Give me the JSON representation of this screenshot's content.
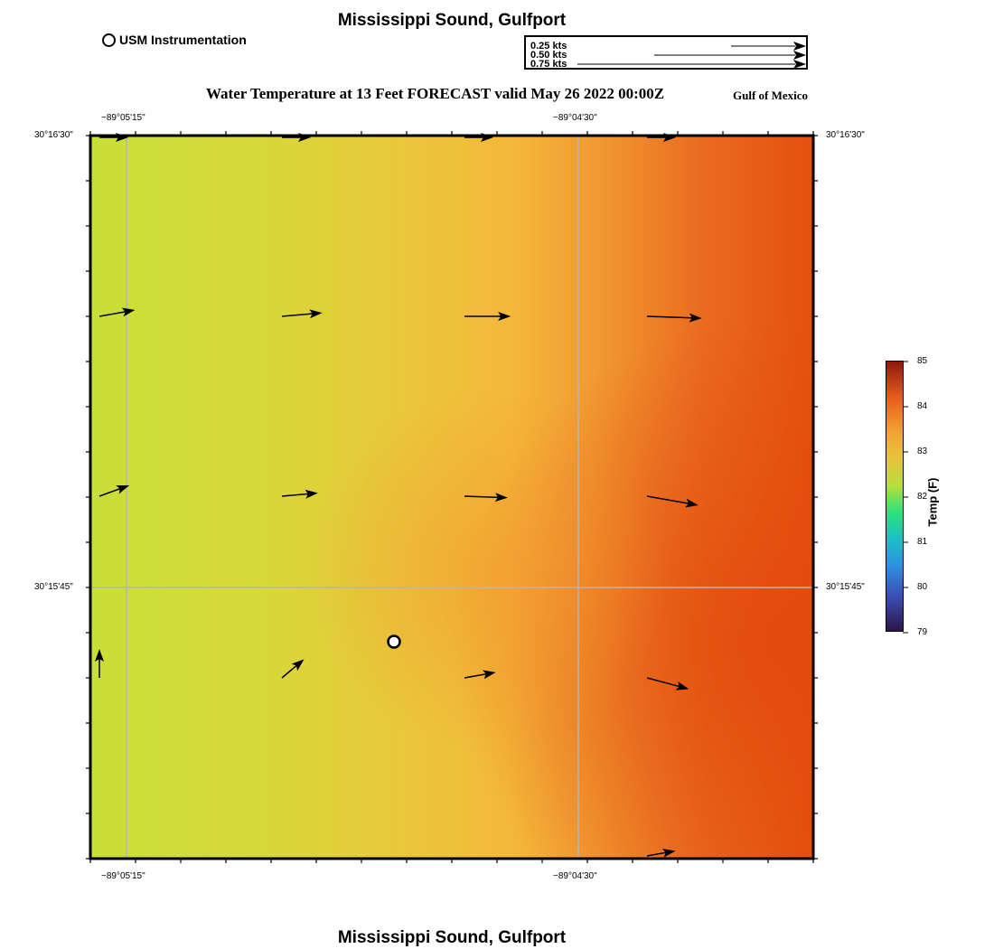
{
  "header": {
    "title": "Mississippi Sound, Gulfport",
    "bottom_title": "Mississippi Sound, Gulfport",
    "usm_label": "USM Instrumentation",
    "subtitle": "Water Temperature at 13 Feet FORECAST valid May 26 2022 00:00Z",
    "region": "Gulf of Mexico"
  },
  "vector_legend": {
    "items": [
      {
        "label": "0.25 kts",
        "speed": 0.25
      },
      {
        "label": "0.50 kts",
        "speed": 0.5
      },
      {
        "label": "0.75 kts",
        "speed": 0.75
      }
    ]
  },
  "axes": {
    "lon_ticks": [
      "−89°05'15\"",
      "−89°04'30\""
    ],
    "lat_ticks": [
      "30°16'30\"",
      "30°15'45\""
    ]
  },
  "colorbar": {
    "label": "Temp (F)",
    "ticks": [
      "85",
      "84",
      "83",
      "82",
      "81",
      "80",
      "79"
    ]
  },
  "colors": {
    "cool": "#c8df38",
    "mid": "#f4b83a",
    "warm": "#e4500f"
  },
  "map": {
    "marker": "usm-instrumentation-site",
    "current_vectors": [
      {
        "row": 0,
        "col": 0,
        "dir_deg": 0,
        "speed": 0.2
      },
      {
        "row": 0,
        "col": 1,
        "dir_deg": 0,
        "speed": 0.2
      },
      {
        "row": 0,
        "col": 2,
        "dir_deg": 0,
        "speed": 0.2
      },
      {
        "row": 0,
        "col": 3,
        "dir_deg": 0,
        "speed": 0.2
      },
      {
        "row": 1,
        "col": 0,
        "dir_deg": -10,
        "speed": 0.25
      },
      {
        "row": 1,
        "col": 1,
        "dir_deg": -5,
        "speed": 0.28
      },
      {
        "row": 1,
        "col": 2,
        "dir_deg": 0,
        "speed": 0.32
      },
      {
        "row": 1,
        "col": 3,
        "dir_deg": 2,
        "speed": 0.38
      },
      {
        "row": 2,
        "col": 0,
        "dir_deg": -20,
        "speed": 0.22
      },
      {
        "row": 2,
        "col": 1,
        "dir_deg": -5,
        "speed": 0.25
      },
      {
        "row": 2,
        "col": 2,
        "dir_deg": 2,
        "speed": 0.3
      },
      {
        "row": 2,
        "col": 3,
        "dir_deg": 10,
        "speed": 0.36
      },
      {
        "row": 3,
        "col": 0,
        "dir_deg": -90,
        "speed": 0.2
      },
      {
        "row": 3,
        "col": 1,
        "dir_deg": -40,
        "speed": 0.2
      },
      {
        "row": 3,
        "col": 2,
        "dir_deg": -10,
        "speed": 0.22
      },
      {
        "row": 3,
        "col": 3,
        "dir_deg": 15,
        "speed": 0.3
      },
      {
        "row": 4,
        "col": 3,
        "dir_deg": -10,
        "speed": 0.2
      }
    ]
  }
}
